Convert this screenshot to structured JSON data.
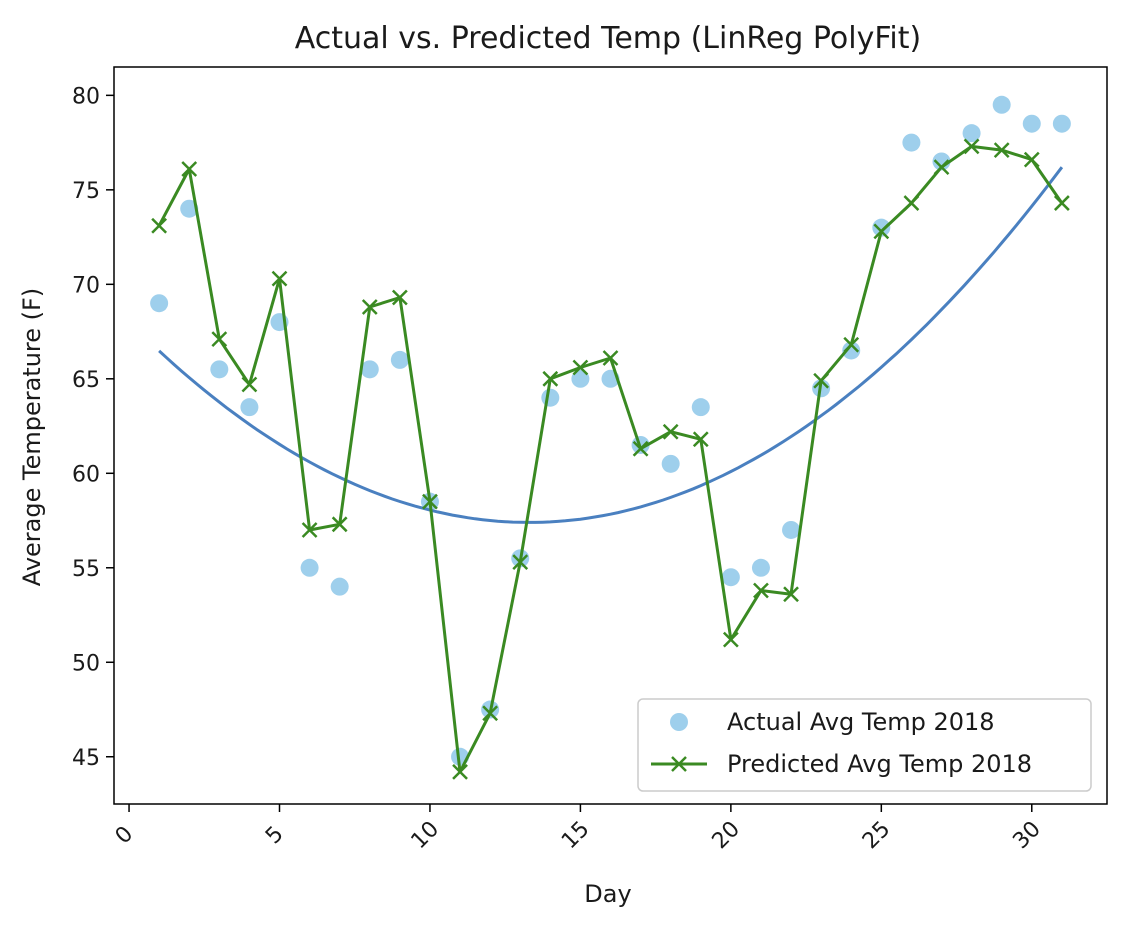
{
  "chart_data": {
    "type": "line",
    "title": "Actual vs. Predicted Temp (LinReg PolyFit)",
    "xlabel": "Day",
    "ylabel": "Average Temperature (F)",
    "xlim": [
      -0.5,
      32.5
    ],
    "ylim": [
      42.5,
      81.5
    ],
    "xticks": [
      0,
      5,
      10,
      15,
      20,
      25,
      30
    ],
    "yticks": [
      45,
      50,
      55,
      60,
      65,
      70,
      75,
      80
    ],
    "grid": false,
    "legend_position": "lower-right",
    "colors": {
      "actual": "#9ecfec",
      "predicted": "#3a8a22",
      "polyfit": "#4a80c0",
      "axis": "#000000"
    },
    "series": [
      {
        "name": "Actual Avg Temp 2018",
        "kind": "scatter",
        "x": [
          1,
          2,
          3,
          4,
          5,
          6,
          7,
          8,
          9,
          10,
          11,
          12,
          13,
          14,
          15,
          16,
          17,
          18,
          19,
          20,
          21,
          22,
          23,
          24,
          25,
          26,
          27,
          28,
          29,
          30,
          31
        ],
        "values": [
          69,
          74,
          65.5,
          63.5,
          68,
          55,
          54,
          65.5,
          66,
          58.5,
          45,
          47.5,
          55.5,
          64,
          65,
          65,
          61.5,
          60.5,
          63.5,
          54.5,
          55,
          57,
          64.5,
          66.5,
          73,
          77.5,
          76.5,
          78,
          79.5,
          78.5,
          78.5
        ]
      },
      {
        "name": "Predicted Avg Temp 2018",
        "kind": "line-x-markers",
        "x": [
          1,
          2,
          3,
          4,
          5,
          6,
          7,
          8,
          9,
          10,
          11,
          12,
          13,
          14,
          15,
          16,
          17,
          18,
          19,
          20,
          21,
          22,
          23,
          24,
          25,
          26,
          27,
          28,
          29,
          30,
          31
        ],
        "values": [
          73.1,
          76.1,
          67.1,
          64.7,
          70.3,
          57,
          57.3,
          68.8,
          69.3,
          58.5,
          44.2,
          47.3,
          55.3,
          65,
          65.6,
          66.1,
          61.3,
          62.2,
          61.8,
          51.2,
          53.8,
          53.6,
          64.9,
          66.8,
          72.8,
          74.3,
          76.2,
          77.3,
          77.1,
          76.6,
          74.3
        ]
      },
      {
        "name": "",
        "kind": "line",
        "fit_coefficients": {
          "a": 0.06,
          "vertex_x": 13.3,
          "vertex_y": 57.4
        },
        "x_range": [
          1,
          31
        ]
      }
    ]
  }
}
